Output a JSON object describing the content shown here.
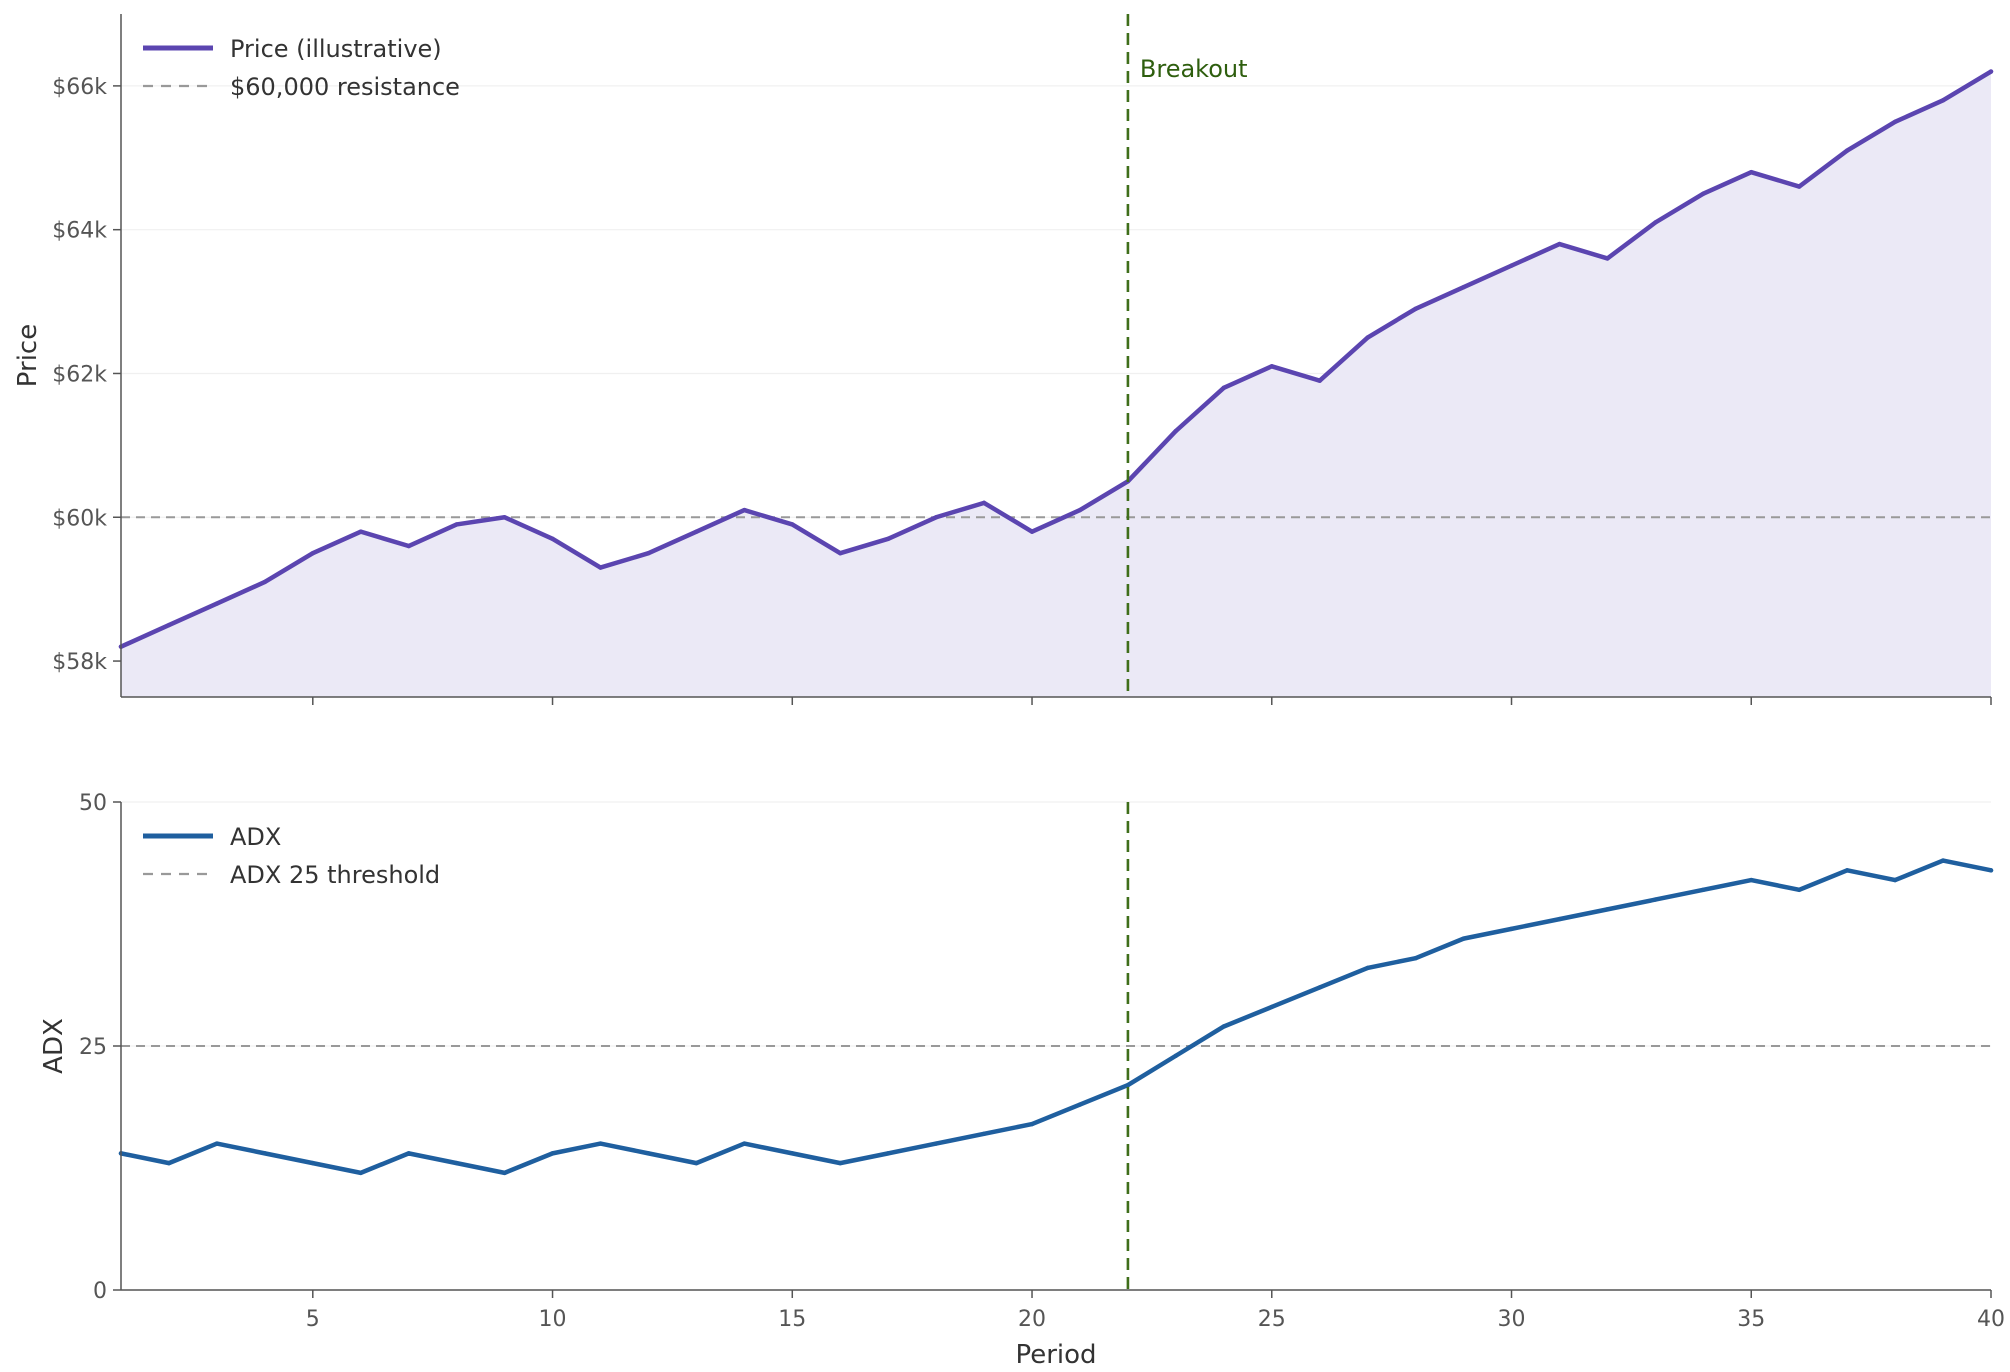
{
  "chart_data": [
    {
      "type": "area",
      "ylabel": "Price",
      "ylim": [
        57500,
        67000
      ],
      "yticks": [
        58000,
        60000,
        62000,
        64000,
        66000
      ],
      "ytick_labels": [
        "$58k",
        "$60k",
        "$62k",
        "$64k",
        "$66k"
      ],
      "xlim": [
        1,
        40
      ],
      "grid": true,
      "legend_placement": "top-left",
      "series": [
        {
          "name": "Price (illustrative)",
          "color": "#5b45b0",
          "fill": "#ebe9f6",
          "x": [
            1,
            2,
            3,
            4,
            5,
            6,
            7,
            8,
            9,
            10,
            11,
            12,
            13,
            14,
            15,
            16,
            17,
            18,
            19,
            20,
            21,
            22,
            23,
            24,
            25,
            26,
            27,
            28,
            29,
            30,
            31,
            32,
            33,
            34,
            35,
            36,
            37,
            38,
            39,
            40
          ],
          "values": [
            58200,
            58500,
            58800,
            59100,
            59500,
            59800,
            59600,
            59900,
            60000,
            59700,
            59300,
            59500,
            59800,
            60100,
            59900,
            59500,
            59700,
            60000,
            60200,
            59800,
            60100,
            60500,
            61200,
            61800,
            62100,
            61900,
            62500,
            62900,
            63200,
            63500,
            63800,
            63600,
            64100,
            64500,
            64800,
            64600,
            65100,
            65500,
            65800,
            66200
          ]
        }
      ],
      "reference_lines": [
        {
          "axis": "y",
          "value": 60000,
          "label": "$60,000 resistance",
          "color": "#999999",
          "style": "dashed"
        },
        {
          "axis": "x",
          "value": 22,
          "color": "#3f6e1a",
          "style": "dashed"
        }
      ],
      "annotations": [
        {
          "text": "Breakout",
          "x": 22.25,
          "y": 66200
        }
      ]
    },
    {
      "type": "line",
      "xlabel": "Period",
      "ylabel": "ADX",
      "ylim": [
        0,
        50
      ],
      "yticks": [
        0,
        25,
        50
      ],
      "ytick_labels": [
        "0",
        "25",
        "50"
      ],
      "xlim": [
        1,
        40
      ],
      "xticks": [
        5,
        10,
        15,
        20,
        25,
        30,
        35,
        40
      ],
      "xtick_labels": [
        "5",
        "10",
        "15",
        "20",
        "25",
        "30",
        "35",
        "40"
      ],
      "grid": true,
      "legend_placement": "top-left",
      "series": [
        {
          "name": "ADX",
          "color": "#1f5f9f",
          "x": [
            1,
            2,
            3,
            4,
            5,
            6,
            7,
            8,
            9,
            10,
            11,
            12,
            13,
            14,
            15,
            16,
            17,
            18,
            19,
            20,
            21,
            22,
            23,
            24,
            25,
            26,
            27,
            28,
            29,
            30,
            31,
            32,
            33,
            34,
            35,
            36,
            37,
            38,
            39,
            40
          ],
          "values": [
            14,
            13,
            15,
            14,
            13,
            12,
            14,
            13,
            12,
            14,
            15,
            14,
            13,
            15,
            14,
            13,
            14,
            15,
            16,
            17,
            19,
            21,
            24,
            27,
            29,
            31,
            33,
            34,
            36,
            37,
            38,
            39,
            40,
            41,
            42,
            41,
            43,
            42,
            44,
            43
          ]
        }
      ],
      "reference_lines": [
        {
          "axis": "y",
          "value": 25,
          "label": "ADX 25 threshold",
          "color": "#999999",
          "style": "dashed"
        },
        {
          "axis": "x",
          "value": 22,
          "color": "#3f6e1a",
          "style": "dashed"
        }
      ]
    }
  ]
}
